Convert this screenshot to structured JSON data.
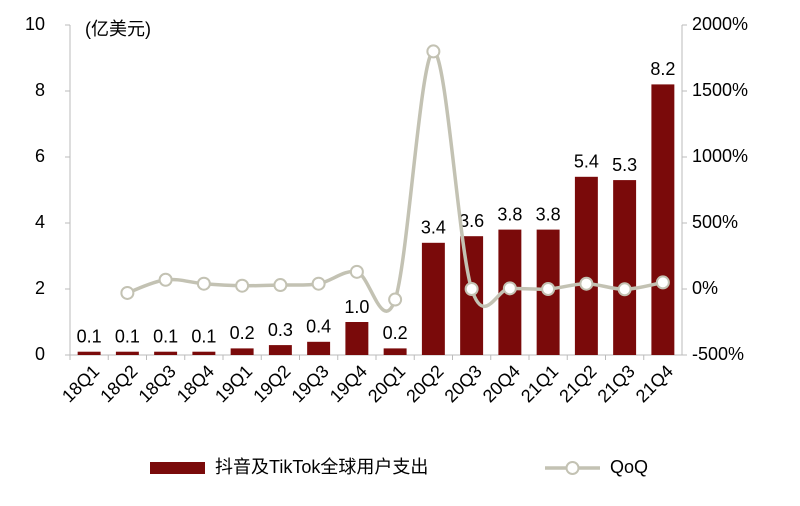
{
  "chart_data": {
    "type": "combo",
    "y_unit": "(亿美元)",
    "categories": [
      "18Q1",
      "18Q2",
      "18Q3",
      "18Q4",
      "19Q1",
      "19Q2",
      "19Q3",
      "19Q4",
      "20Q1",
      "20Q2",
      "20Q3",
      "20Q4",
      "21Q1",
      "21Q2",
      "21Q3",
      "21Q4"
    ],
    "series": [
      {
        "name": "抖音及TikTok全球用户支出",
        "type": "bar",
        "color": "#7a0a0a",
        "values": [
          0.1,
          0.1,
          0.1,
          0.1,
          0.2,
          0.3,
          0.4,
          1.0,
          0.2,
          3.4,
          3.6,
          3.8,
          3.8,
          5.4,
          5.3,
          8.2
        ],
        "value_labels": [
          "0.1",
          "0.1",
          "0.1",
          "0.1",
          "0.2",
          "0.3",
          "0.4",
          "1.0",
          "0.2",
          "3.4",
          "3.6",
          "3.8",
          "3.8",
          "5.4",
          "5.3",
          "8.2"
        ]
      },
      {
        "name": "QoQ",
        "type": "line",
        "color": "#c3c2b3",
        "axis": "y2",
        "values": [
          null,
          -30,
          70,
          40,
          25,
          30,
          40,
          130,
          -80,
          1800,
          0,
          5,
          0,
          40,
          -2,
          50
        ]
      }
    ],
    "ylim": [
      0,
      10
    ],
    "yticks": [
      0,
      2,
      4,
      6,
      8,
      10
    ],
    "y2lim": [
      -500,
      2000
    ],
    "y2ticks": [
      {
        "value": -500,
        "label": "-500%"
      },
      {
        "value": 0,
        "label": "0%"
      },
      {
        "value": 500,
        "label": "500%"
      },
      {
        "value": 1000,
        "label": "1000%"
      },
      {
        "value": 1500,
        "label": "1500%"
      },
      {
        "value": 2000,
        "label": "2000%"
      }
    ],
    "legend": "bottom"
  }
}
